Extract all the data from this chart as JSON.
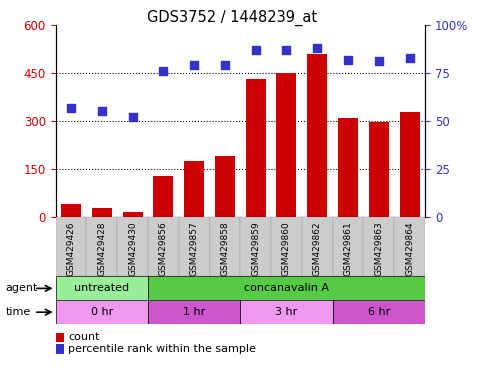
{
  "title": "GDS3752 / 1448239_at",
  "samples": [
    "GSM429426",
    "GSM429428",
    "GSM429430",
    "GSM429856",
    "GSM429857",
    "GSM429858",
    "GSM429859",
    "GSM429860",
    "GSM429862",
    "GSM429861",
    "GSM429863",
    "GSM429864"
  ],
  "counts": [
    40,
    28,
    14,
    128,
    175,
    190,
    430,
    450,
    510,
    308,
    298,
    328
  ],
  "percentile": [
    57,
    55,
    52,
    76,
    79,
    79,
    87,
    87,
    88,
    82,
    81,
    83
  ],
  "bar_color": "#cc0000",
  "dot_color": "#3333cc",
  "yleft_max": 600,
  "yleft_ticks": [
    0,
    150,
    300,
    450,
    600
  ],
  "yright_max": 100,
  "yright_ticks": [
    0,
    25,
    50,
    75,
    100
  ],
  "agent_labels": [
    {
      "label": "untreated",
      "start": 0,
      "end": 3,
      "color": "#99ee99"
    },
    {
      "label": "concanavalin A",
      "start": 3,
      "end": 12,
      "color": "#55cc44"
    }
  ],
  "time_labels": [
    {
      "label": "0 hr",
      "start": 0,
      "end": 3,
      "color": "#ee99ee"
    },
    {
      "label": "1 hr",
      "start": 3,
      "end": 6,
      "color": "#cc55cc"
    },
    {
      "label": "3 hr",
      "start": 6,
      "end": 9,
      "color": "#ee99ee"
    },
    {
      "label": "6 hr",
      "start": 9,
      "end": 12,
      "color": "#cc55cc"
    }
  ],
  "legend_count_color": "#cc0000",
  "legend_dot_color": "#3333cc",
  "tick_label_color_left": "#cc0000",
  "tick_label_color_right": "#3333cc",
  "agent_row_label": "agent",
  "time_row_label": "time",
  "xtick_bg_color": "#cccccc"
}
